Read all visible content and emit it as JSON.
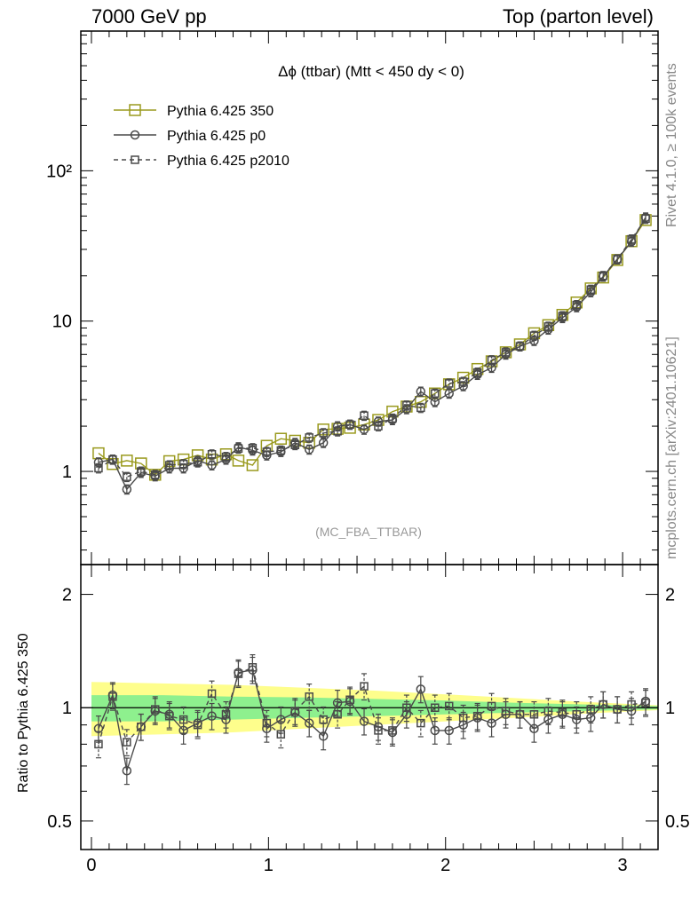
{
  "header": {
    "left": "7000 GeV pp",
    "right": "Top (parton level)"
  },
  "side_text": {
    "rivet": "Rivet 4.1.0, ≥ 100k events",
    "mcplots": "mcplots.cern.ch [arXiv:2401.10621]"
  },
  "colors": {
    "series_350": "#9a9a1e",
    "series_p0": "#4a4a4a",
    "series_p2010": "#4a4a4a",
    "band_inner": "#8ef08e",
    "band_outer": "#fefe8c"
  },
  "chart_data": [
    {
      "type": "line",
      "title": "Δϕ (ttbar) (Mtt < 450 dy < 0)",
      "analysis": "(MC_FBA_TTBAR)",
      "yscale": "log",
      "xlim": [
        -0.06,
        3.2
      ],
      "ylim": [
        0.24,
        850
      ],
      "yticks": [
        1,
        10,
        100
      ],
      "ytick_labels": [
        "1",
        "10",
        "10²"
      ],
      "legend_position": "top-left",
      "x": [
        0.04,
        0.12,
        0.2,
        0.28,
        0.36,
        0.44,
        0.52,
        0.6,
        0.68,
        0.76,
        0.83,
        0.91,
        0.99,
        1.07,
        1.15,
        1.23,
        1.31,
        1.39,
        1.46,
        1.54,
        1.62,
        1.7,
        1.78,
        1.86,
        1.94,
        2.02,
        2.1,
        2.18,
        2.26,
        2.34,
        2.42,
        2.5,
        2.58,
        2.66,
        2.74,
        2.82,
        2.89,
        2.97,
        3.05,
        3.13
      ],
      "series": [
        {
          "name": "Pythia 6.425 350",
          "marker": "open-square-large",
          "line": "solid",
          "values": [
            1.32,
            1.12,
            1.18,
            1.13,
            0.95,
            1.17,
            1.2,
            1.28,
            1.2,
            1.3,
            1.18,
            1.1,
            1.48,
            1.65,
            1.6,
            1.55,
            1.9,
            1.92,
            1.95,
            2.05,
            2.2,
            2.5,
            2.7,
            2.9,
            3.3,
            3.8,
            4.2,
            4.8,
            5.4,
            6.2,
            7.0,
            8.3,
            9.4,
            11.0,
            13.3,
            16.5,
            19.5,
            25.5,
            34.0,
            47.0
          ]
        },
        {
          "name": "Pythia 6.425 p0",
          "marker": "open-circle",
          "line": "solid",
          "values": [
            1.15,
            1.2,
            0.76,
            0.98,
            0.93,
            1.05,
            1.05,
            1.18,
            1.1,
            1.2,
            1.45,
            1.38,
            1.28,
            1.35,
            1.55,
            1.4,
            1.55,
            2.0,
            2.05,
            1.9,
            2.15,
            2.2,
            2.6,
            3.4,
            2.9,
            3.3,
            3.7,
            4.4,
            4.9,
            6.0,
            6.8,
            7.4,
            8.8,
            10.5,
            12.4,
            15.6,
            19.8,
            25.8,
            33.8,
            49.0
          ]
        },
        {
          "name": "Pythia 6.425 p2010",
          "marker": "open-square-small",
          "line": "dashed",
          "values": [
            1.05,
            1.2,
            0.92,
            1.0,
            0.95,
            1.1,
            1.12,
            1.15,
            1.3,
            1.25,
            1.42,
            1.43,
            1.35,
            1.38,
            1.5,
            1.68,
            1.8,
            1.85,
            2.05,
            2.35,
            2.0,
            2.25,
            2.75,
            2.65,
            3.3,
            3.85,
            3.95,
            4.55,
            5.5,
            6.2,
            6.8,
            8.0,
            9.2,
            10.8,
            12.8,
            16.2,
            20.0,
            25.8,
            35.0,
            48.0
          ]
        }
      ]
    },
    {
      "type": "line",
      "ylabel": "Ratio to Pythia 6.425 350",
      "yscale": "log",
      "xlim": [
        -0.06,
        3.2
      ],
      "ylim": [
        0.42,
        2.4
      ],
      "yticks": [
        0.5,
        1,
        2
      ],
      "ytick_labels": [
        "0.5",
        "1",
        "2"
      ],
      "xticks": [
        0,
        1,
        2,
        3
      ],
      "xtick_labels": [
        "0",
        "1",
        "2",
        "3"
      ],
      "reference": 1,
      "band": {
        "x": [
          0.0,
          0.4,
          0.8,
          1.2,
          1.6,
          2.0,
          2.4,
          2.8,
          3.2
        ],
        "inner_lo": [
          0.92,
          0.92,
          0.93,
          0.94,
          0.95,
          0.96,
          0.97,
          0.98,
          0.99
        ],
        "inner_hi": [
          1.08,
          1.08,
          1.07,
          1.065,
          1.055,
          1.045,
          1.03,
          1.02,
          1.01
        ],
        "outer_lo": [
          0.84,
          0.85,
          0.86,
          0.88,
          0.9,
          0.92,
          0.94,
          0.965,
          0.985
        ],
        "outer_hi": [
          1.17,
          1.16,
          1.15,
          1.13,
          1.11,
          1.085,
          1.06,
          1.035,
          1.015
        ]
      },
      "x": [
        0.04,
        0.12,
        0.2,
        0.28,
        0.36,
        0.44,
        0.52,
        0.6,
        0.68,
        0.76,
        0.83,
        0.91,
        0.99,
        1.07,
        1.15,
        1.23,
        1.31,
        1.39,
        1.46,
        1.54,
        1.62,
        1.7,
        1.78,
        1.86,
        1.94,
        2.02,
        2.1,
        2.18,
        2.26,
        2.34,
        2.42,
        2.5,
        2.58,
        2.66,
        2.74,
        2.82,
        2.89,
        2.97,
        3.05,
        3.13
      ],
      "series": [
        {
          "name": "Pythia 6.425 p0",
          "marker": "open-circle",
          "line": "solid",
          "values": [
            0.88,
            1.08,
            0.68,
            0.89,
            0.98,
            0.96,
            0.87,
            0.91,
            0.95,
            0.93,
            1.24,
            1.26,
            0.88,
            0.93,
            0.97,
            0.91,
            0.84,
            1.03,
            1.04,
            0.92,
            0.89,
            0.86,
            0.96,
            1.12,
            0.87,
            0.87,
            0.9,
            0.94,
            0.91,
            0.96,
            0.96,
            0.88,
            0.93,
            0.96,
            0.93,
            0.94,
            1.02,
            0.99,
            0.98,
            1.04
          ]
        },
        {
          "name": "Pythia 6.425 p2010",
          "marker": "open-square-small",
          "line": "dashed",
          "values": [
            0.8,
            1.07,
            0.81,
            0.89,
            0.99,
            0.95,
            0.93,
            0.9,
            1.09,
            0.96,
            1.23,
            1.28,
            0.91,
            0.85,
            0.98,
            1.07,
            0.93,
            0.96,
            1.05,
            1.14,
            0.87,
            0.87,
            1.0,
            0.91,
            1.0,
            1.01,
            0.94,
            0.95,
            1.01,
            0.98,
            0.96,
            0.96,
            0.98,
            0.97,
            0.96,
            0.99,
            1.02,
            0.99,
            1.02,
            1.03
          ]
        }
      ]
    }
  ]
}
